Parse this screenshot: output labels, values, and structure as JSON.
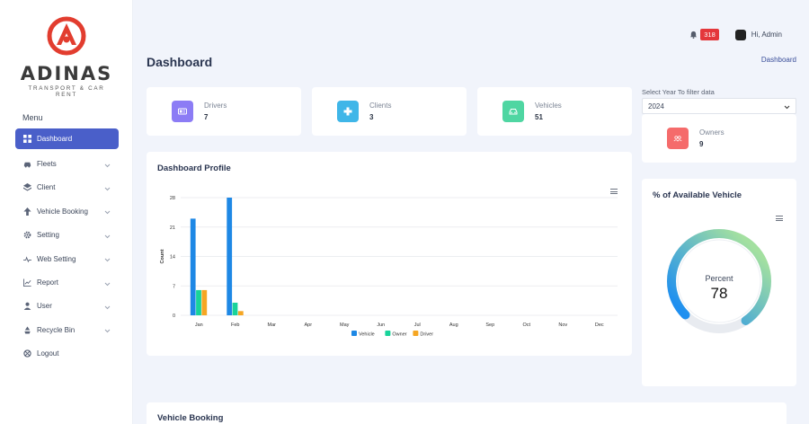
{
  "brand": {
    "name": "ADINAS",
    "tagline": "TRANSPORT & CAR RENT"
  },
  "sidebar": {
    "heading": "Menu",
    "items": [
      {
        "label": "Dashboard",
        "icon": "grid-icon",
        "active": true,
        "has_children": false
      },
      {
        "label": "Fleets",
        "icon": "car-icon",
        "active": false,
        "has_children": true
      },
      {
        "label": "Client",
        "icon": "layers-icon",
        "active": false,
        "has_children": true
      },
      {
        "label": "Vehicle Booking",
        "icon": "upload-icon",
        "active": false,
        "has_children": true
      },
      {
        "label": "Setting",
        "icon": "gear-icon",
        "active": false,
        "has_children": true
      },
      {
        "label": "Web Setting",
        "icon": "pulse-icon",
        "active": false,
        "has_children": true
      },
      {
        "label": "Report",
        "icon": "chart-icon",
        "active": false,
        "has_children": true
      },
      {
        "label": "User",
        "icon": "user-icon",
        "active": false,
        "has_children": true
      },
      {
        "label": "Recycle Bin",
        "icon": "recycle-icon",
        "active": false,
        "has_children": true
      },
      {
        "label": "Logout",
        "icon": "logout-icon",
        "active": false,
        "has_children": false
      }
    ]
  },
  "header": {
    "notification_count": "318",
    "greeting": "Hi, Admin",
    "page_title": "Dashboard",
    "breadcrumb": "Dashboard"
  },
  "stats": [
    {
      "label": "Drivers",
      "value": "7",
      "color": "#8c7cf5",
      "icon": "id-card-icon"
    },
    {
      "label": "Clients",
      "value": "3",
      "color": "#3fb6e8",
      "icon": "clients-icon"
    },
    {
      "label": "Vehicles",
      "value": "51",
      "color": "#4fd6a2",
      "icon": "car-front-icon"
    },
    {
      "label": "Owners",
      "value": "9",
      "color": "#f56b6b",
      "icon": "owners-icon"
    }
  ],
  "filter": {
    "label": "Select Year To filter data",
    "selected": "2024"
  },
  "dashboard_profile": {
    "title": "Dashboard Profile"
  },
  "gauge": {
    "title": "% of Available Vehicle",
    "label": "Percent",
    "value": "78",
    "percent": 78,
    "color_start": "#a3e0a0",
    "color_end": "#1e8ff0"
  },
  "vehicle_booking": {
    "title": "Vehicle Booking"
  },
  "chart_data": {
    "type": "bar",
    "title": "",
    "xlabel": "",
    "ylabel": "Count",
    "ylim": [
      0,
      28
    ],
    "yticks": [
      0,
      7,
      14,
      21,
      28
    ],
    "categories": [
      "Jan",
      "Feb",
      "Mar",
      "Apr",
      "May",
      "Jun",
      "Jul",
      "Aug",
      "Sep",
      "Oct",
      "Nov",
      "Dec"
    ],
    "series": [
      {
        "name": "Vehicle",
        "color": "#1e88e5",
        "values": [
          23,
          28,
          0,
          0,
          0,
          0,
          0,
          0,
          0,
          0,
          0,
          0
        ]
      },
      {
        "name": "Owner",
        "color": "#18d39a",
        "values": [
          6,
          3,
          0,
          0,
          0,
          0,
          0,
          0,
          0,
          0,
          0,
          0
        ]
      },
      {
        "name": "Driver",
        "color": "#f5a623",
        "values": [
          6,
          1,
          0,
          0,
          0,
          0,
          0,
          0,
          0,
          0,
          0,
          0
        ]
      }
    ],
    "legend": "bottom-center",
    "grid": true
  }
}
